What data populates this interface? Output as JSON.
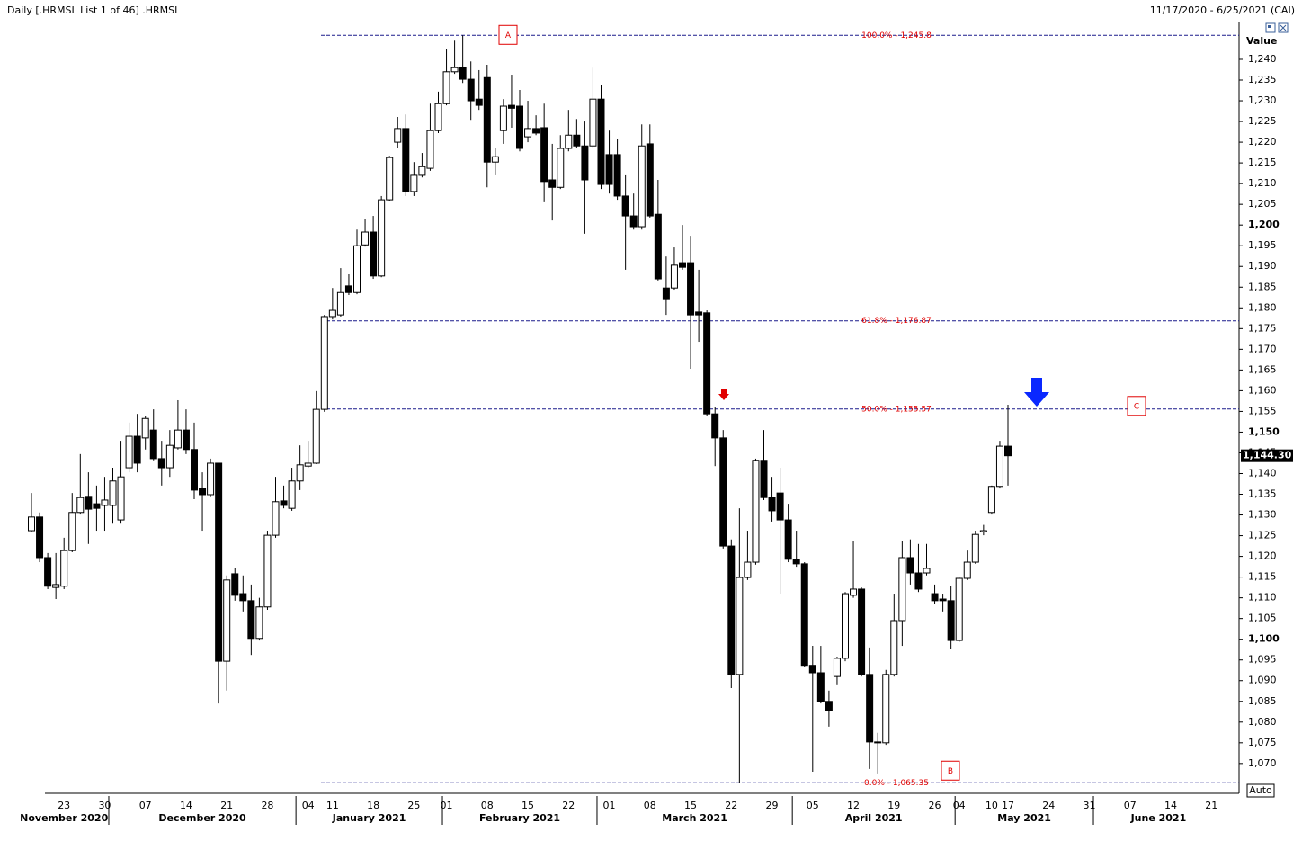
{
  "chart_data": {
    "type": "candlestick",
    "title": "Daily [.HRMSL List 1 of 46] .HRMSL",
    "subtitle": "11/17/2020 - 6/25/2021 (CAI)",
    "y_label": "Value",
    "auto_label": "Auto",
    "grid": false,
    "up_color": "#ffffff",
    "down_color": "#000000",
    "fib_color": "#1c1c8c",
    "fib_label_color": "#e00000",
    "categories": [
      null,
      null,
      null,
      null,
      "23",
      null,
      null,
      null,
      null,
      "30",
      null,
      null,
      null,
      null,
      "07",
      null,
      null,
      null,
      null,
      "14",
      null,
      null,
      null,
      null,
      "21",
      null,
      null,
      null,
      null,
      "28",
      null,
      null,
      null,
      null,
      "04",
      null,
      null,
      "11",
      null,
      null,
      null,
      null,
      "18",
      null,
      null,
      null,
      null,
      "25",
      null,
      null,
      null,
      "01",
      null,
      null,
      null,
      null,
      "08",
      null,
      null,
      null,
      null,
      "15",
      null,
      null,
      null,
      null,
      "22",
      null,
      null,
      null,
      null,
      "01",
      null,
      null,
      null,
      null,
      "08",
      null,
      null,
      null,
      null,
      "15",
      null,
      null,
      null,
      null,
      "22",
      null,
      null,
      null,
      null,
      "29",
      null,
      null,
      null,
      null,
      "05",
      null,
      null,
      null,
      null,
      "12",
      null,
      null,
      null,
      null,
      "19",
      null,
      null,
      null,
      null,
      "26",
      null,
      null,
      "04",
      null,
      null,
      null,
      "10",
      null,
      "17",
      null,
      null,
      null,
      null,
      "24",
      null,
      null,
      null,
      null,
      "31",
      null,
      null,
      null,
      null,
      "07",
      null,
      null,
      null,
      null,
      "14",
      null,
      null,
      null,
      null,
      "21"
    ],
    "months": [
      "November 2020",
      "December 2020",
      "January 2021",
      "February 2021",
      "March 2021",
      "April 2021",
      "May 2021",
      "June 2021"
    ],
    "open": [
      1126.2,
      1129.5,
      1119.7,
      1112.5,
      1112.8,
      1121.4,
      1130.6,
      1134.5,
      1132.7,
      1132.3,
      1132.3,
      1128.8,
      1141.4,
      1149.0,
      1148.6,
      1150.5,
      1143.6,
      1141.4,
      1146.2,
      1150.5,
      1145.8,
      1136.4,
      1134.9,
      1142.5,
      1094.7,
      1115.8,
      1111.0,
      1109.3,
      1100.2,
      1107.8,
      1125.1,
      1133.4,
      1131.6,
      1138.2,
      1141.8,
      1142.5,
      1155.5,
      1177.9,
      1178.3,
      1185.3,
      1183.7,
      1195.2,
      1198.3,
      1187.7,
      1206.1,
      1220.0,
      1223.3,
      1208.1,
      1212.0,
      1213.7,
      1222.8,
      1229.3,
      1237.0,
      1238.0,
      1235.2,
      1230.4,
      1235.6,
      1215.2,
      1222.8,
      1228.9,
      1228.7,
      1221.3,
      1223.3,
      1223.5,
      1210.9,
      1209.1,
      1218.5,
      1221.7,
      1219.1,
      1219.1,
      1230.4,
      1217.0,
      1217.0,
      1207.0,
      1202.2,
      1199.6,
      1219.6,
      1202.6,
      1184.8,
      1184.8,
      1190.9,
      1190.9,
      1179.0,
      1178.8,
      1154.4,
      1148.6,
      1122.5,
      1091.5,
      1114.9,
      1118.6,
      1143.2,
      1134.2,
      1135.3,
      1128.8,
      1119.3,
      1118.2,
      1093.7,
      1091.9,
      1085.0,
      1091.0,
      1095.4,
      1110.6,
      1112.1,
      1091.5,
      1075.0,
      1075.0,
      1091.5,
      1104.5,
      1119.7,
      1116.0,
      1116.0,
      1111.0,
      1109.7,
      1109.3,
      1099.7,
      1114.7,
      1118.6,
      1125.9,
      1130.6,
      1136.9,
      1146.6,
      null,
      null,
      null,
      null,
      null,
      null,
      null,
      null,
      null,
      null,
      null,
      null,
      null,
      null,
      null,
      null,
      null,
      null,
      null,
      null,
      null,
      null,
      null,
      null,
      null
    ],
    "high": [
      1135.3,
      1130.6,
      1120.8,
      1120.8,
      1124.5,
      1135.3,
      1144.7,
      1140.3,
      1137.1,
      1139.2,
      1141.4,
      1147.9,
      1152.3,
      1154.4,
      1154.0,
      1155.5,
      1147.9,
      1150.5,
      1157.7,
      1155.5,
      1152.3,
      1140.3,
      1143.6,
      1142.5,
      1115.4,
      1117.1,
      1115.4,
      1113.2,
      1110.0,
      1126.2,
      1139.2,
      1137.1,
      1141.4,
      1146.8,
      1147.9,
      1159.9,
      1178.3,
      1184.8,
      1189.6,
      1188.1,
      1198.9,
      1201.5,
      1202.2,
      1207.0,
      1216.7,
      1226.1,
      1226.7,
      1215.2,
      1217.4,
      1229.3,
      1232.2,
      1242.4,
      1244.5,
      1245.8,
      1239.5,
      1237.4,
      1238.7,
      1218.5,
      1230.4,
      1236.3,
      1232.6,
      1230.0,
      1226.5,
      1229.3,
      1219.6,
      1221.7,
      1227.8,
      1225.6,
      1225.0,
      1238.0,
      1233.7,
      1222.8,
      1220.7,
      1212.0,
      1207.6,
      1224.3,
      1224.3,
      1210.9,
      1192.4,
      1194.6,
      1200.0,
      1197.4,
      1189.2,
      1179.4,
      1156.0,
      1150.5,
      1124.1,
      1131.6,
      1126.2,
      1143.6,
      1150.5,
      1139.2,
      1141.4,
      1132.7,
      1126.2,
      1118.6,
      1098.4,
      1098.4,
      1087.6,
      1095.8,
      1111.4,
      1123.6,
      1112.5,
      1098.0,
      1077.4,
      1092.6,
      1111.0,
      1123.6,
      1124.1,
      1123.0,
      1123.0,
      1113.2,
      1111.0,
      1112.8,
      1114.9,
      1121.4,
      1126.2,
      1127.6,
      1137.1,
      1147.9,
      1156.6,
      null,
      null,
      null,
      null,
      null,
      null,
      null,
      null,
      null,
      null,
      null,
      null,
      null,
      null,
      null,
      null,
      null,
      null,
      null,
      null,
      null,
      null,
      null,
      null,
      null
    ],
    "low": [
      1125.8,
      1118.6,
      1112.1,
      1109.7,
      1112.1,
      1121.0,
      1130.1,
      1123.0,
      1126.2,
      1126.2,
      1127.9,
      1127.9,
      1140.3,
      1140.3,
      1145.8,
      1143.2,
      1137.1,
      1139.2,
      1145.8,
      1144.7,
      1133.8,
      1126.2,
      1134.5,
      1084.5,
      1087.6,
      1109.3,
      1106.7,
      1096.2,
      1099.7,
      1107.1,
      1124.5,
      1131.6,
      1131.0,
      1136.0,
      1141.4,
      1142.3,
      1154.9,
      1177.2,
      1177.9,
      1183.1,
      1183.3,
      1194.8,
      1187.0,
      1187.4,
      1205.7,
      1218.5,
      1207.0,
      1207.0,
      1211.5,
      1213.1,
      1222.2,
      1228.9,
      1236.5,
      1234.3,
      1225.4,
      1227.8,
      1209.1,
      1212.0,
      1219.6,
      1223.5,
      1217.8,
      1220.0,
      1221.7,
      1205.5,
      1201.1,
      1208.7,
      1217.8,
      1218.5,
      1197.9,
      1218.5,
      1208.7,
      1207.6,
      1206.1,
      1189.2,
      1198.9,
      1198.9,
      1201.8,
      1186.6,
      1178.3,
      1184.4,
      1189.2,
      1165.3,
      1171.8,
      1154.0,
      1141.8,
      1121.9,
      1088.2,
      1065.4,
      1114.3,
      1118.0,
      1133.6,
      1128.4,
      1111.0,
      1118.6,
      1117.5,
      1093.2,
      1068.0,
      1084.5,
      1078.9,
      1088.9,
      1094.7,
      1110.0,
      1091.0,
      1068.7,
      1067.6,
      1074.5,
      1091.0,
      1098.4,
      1113.2,
      1111.4,
      1115.4,
      1108.4,
      1106.7,
      1097.6,
      1099.3,
      1114.3,
      1118.2,
      1125.1,
      1130.1,
      1136.4,
      1137.1,
      null,
      null,
      null,
      null,
      null,
      null,
      null,
      null,
      null,
      null,
      null,
      null,
      null,
      null,
      null,
      null,
      null,
      null,
      null,
      null,
      null,
      null,
      null,
      null,
      null
    ],
    "close": [
      1129.5,
      1119.7,
      1112.8,
      1113.2,
      1121.4,
      1130.6,
      1134.2,
      1131.4,
      1131.6,
      1133.6,
      1138.2,
      1139.2,
      1149.0,
      1142.5,
      1153.3,
      1143.6,
      1141.4,
      1146.8,
      1150.5,
      1145.8,
      1136.0,
      1134.9,
      1142.5,
      1094.7,
      1114.3,
      1110.6,
      1109.3,
      1100.2,
      1107.8,
      1125.1,
      1133.2,
      1132.3,
      1138.2,
      1142.1,
      1142.5,
      1155.5,
      1177.9,
      1179.4,
      1183.7,
      1183.7,
      1195.0,
      1198.3,
      1187.7,
      1206.1,
      1216.3,
      1223.3,
      1208.1,
      1212.0,
      1214.1,
      1222.8,
      1229.3,
      1237.0,
      1238.0,
      1235.2,
      1230.0,
      1228.9,
      1215.2,
      1216.5,
      1228.7,
      1228.2,
      1218.5,
      1223.3,
      1222.2,
      1210.5,
      1209.1,
      1218.5,
      1221.7,
      1219.1,
      1210.9,
      1230.4,
      1209.8,
      1209.8,
      1207.0,
      1202.2,
      1199.6,
      1219.1,
      1202.2,
      1187.0,
      1182.2,
      1190.3,
      1189.8,
      1178.3,
      1178.3,
      1154.4,
      1148.6,
      1122.5,
      1091.5,
      1114.9,
      1118.6,
      1143.2,
      1134.2,
      1131.0,
      1128.8,
      1119.3,
      1118.2,
      1093.7,
      1091.9,
      1085.0,
      1082.8,
      1095.4,
      1111.0,
      1112.1,
      1091.5,
      1075.2,
      1075.2,
      1091.5,
      1104.5,
      1119.7,
      1116.0,
      1112.1,
      1117.1,
      1109.3,
      1109.3,
      1099.7,
      1114.7,
      1118.6,
      1125.3,
      1126.2,
      1136.9,
      1146.6,
      1144.3,
      null,
      null,
      null,
      null,
      null,
      null,
      null,
      null,
      null,
      null,
      null,
      null,
      null,
      null,
      null,
      null,
      null,
      null,
      null,
      null,
      null,
      null,
      null,
      null,
      null
    ],
    "ylim": [
      1062.8,
      1248.9
    ],
    "yticks": [
      {
        "value": 1070,
        "label": "1,070"
      },
      {
        "value": 1075,
        "label": "1,075"
      },
      {
        "value": 1080,
        "label": "1,080"
      },
      {
        "value": 1085,
        "label": "1,085"
      },
      {
        "value": 1090,
        "label": "1,090"
      },
      {
        "value": 1095,
        "label": "1,095"
      },
      {
        "value": 1100,
        "label": "1,100",
        "bold": true
      },
      {
        "value": 1105,
        "label": "1,105"
      },
      {
        "value": 1110,
        "label": "1,110"
      },
      {
        "value": 1115,
        "label": "1,115"
      },
      {
        "value": 1120,
        "label": "1,120"
      },
      {
        "value": 1125,
        "label": "1,125"
      },
      {
        "value": 1130,
        "label": "1,130"
      },
      {
        "value": 1135,
        "label": "1,135"
      },
      {
        "value": 1140,
        "label": "1,140"
      },
      {
        "value": 1145,
        "label": "1,145"
      },
      {
        "value": 1150,
        "label": "1,150",
        "bold": true
      },
      {
        "value": 1155,
        "label": "1,155"
      },
      {
        "value": 1160,
        "label": "1,160"
      },
      {
        "value": 1165,
        "label": "1,165"
      },
      {
        "value": 1170,
        "label": "1,170"
      },
      {
        "value": 1175,
        "label": "1,175"
      },
      {
        "value": 1180,
        "label": "1,180"
      },
      {
        "value": 1185,
        "label": "1,185"
      },
      {
        "value": 1190,
        "label": "1,190"
      },
      {
        "value": 1195,
        "label": "1,195"
      },
      {
        "value": 1200,
        "label": "1,200",
        "bold": true
      },
      {
        "value": 1205,
        "label": "1,205"
      },
      {
        "value": 1210,
        "label": "1,210"
      },
      {
        "value": 1215,
        "label": "1,215"
      },
      {
        "value": 1220,
        "label": "1,220"
      },
      {
        "value": 1225,
        "label": "1,225"
      },
      {
        "value": 1230,
        "label": "1,230"
      },
      {
        "value": 1235,
        "label": "1,235"
      },
      {
        "value": 1240,
        "label": "1,240"
      }
    ],
    "fib_levels": [
      {
        "value": 1245.8,
        "label": "100.0% - 1,245.8"
      },
      {
        "value": 1176.87,
        "label": "61.8% - 1,176.87"
      },
      {
        "value": 1155.57,
        "label": "50.0% - 1,155.57"
      },
      {
        "value": 1065.35,
        "label": "0.0% - 1,065.35"
      }
    ],
    "last_price": {
      "value": 1144.3,
      "label": "1,144.30"
    },
    "points": [
      "A",
      "B",
      "C"
    ]
  }
}
